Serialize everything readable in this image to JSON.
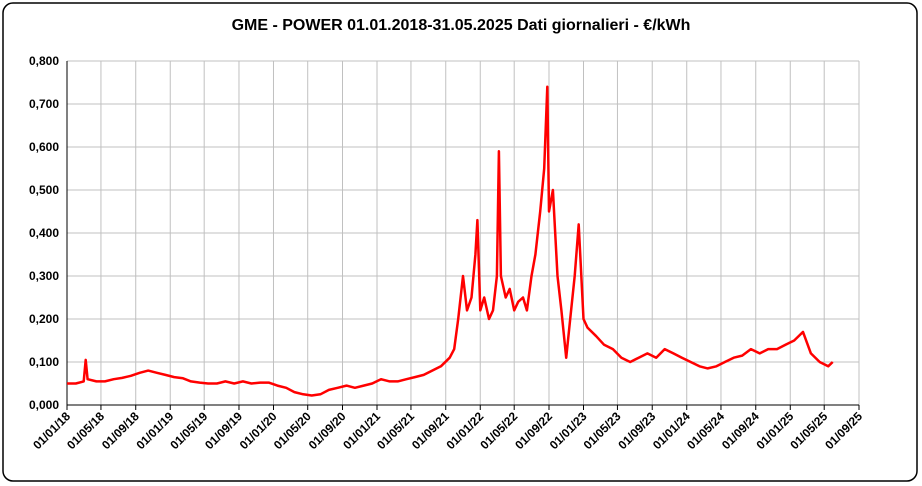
{
  "chart_data": {
    "type": "line",
    "title": "GME - POWER 01.01.2018-31.05.2025 Dati giornalieri - €/kWh",
    "x": [
      "2018-01-01",
      "2018-02-01",
      "2018-03-01",
      "2018-03-08",
      "2018-03-15",
      "2018-04-15",
      "2018-05-15",
      "2018-06-15",
      "2018-07-15",
      "2018-08-15",
      "2018-09-15",
      "2018-10-15",
      "2018-11-15",
      "2018-12-15",
      "2019-01-15",
      "2019-02-15",
      "2019-03-15",
      "2019-04-15",
      "2019-05-15",
      "2019-06-15",
      "2019-07-15",
      "2019-08-15",
      "2019-09-15",
      "2019-10-15",
      "2019-11-15",
      "2019-12-15",
      "2020-01-15",
      "2020-02-15",
      "2020-03-15",
      "2020-04-15",
      "2020-05-15",
      "2020-06-15",
      "2020-07-15",
      "2020-08-15",
      "2020-09-15",
      "2020-10-15",
      "2020-11-15",
      "2020-12-15",
      "2021-01-15",
      "2021-02-15",
      "2021-03-15",
      "2021-04-15",
      "2021-05-15",
      "2021-06-15",
      "2021-07-15",
      "2021-08-15",
      "2021-09-15",
      "2021-10-01",
      "2021-10-15",
      "2021-11-01",
      "2021-11-15",
      "2021-12-01",
      "2021-12-15",
      "2021-12-22",
      "2022-01-01",
      "2022-01-15",
      "2022-02-01",
      "2022-02-15",
      "2022-03-01",
      "2022-03-08",
      "2022-03-15",
      "2022-04-01",
      "2022-04-15",
      "2022-05-01",
      "2022-05-15",
      "2022-06-01",
      "2022-06-15",
      "2022-07-01",
      "2022-07-15",
      "2022-08-01",
      "2022-08-15",
      "2022-08-26",
      "2022-09-01",
      "2022-09-15",
      "2022-10-01",
      "2022-10-15",
      "2022-11-01",
      "2022-11-15",
      "2022-12-01",
      "2022-12-15",
      "2023-01-01",
      "2023-01-15",
      "2023-02-15",
      "2023-03-15",
      "2023-04-15",
      "2023-05-15",
      "2023-06-15",
      "2023-07-15",
      "2023-08-15",
      "2023-09-15",
      "2023-10-15",
      "2023-11-15",
      "2023-12-15",
      "2024-01-15",
      "2024-02-15",
      "2024-03-15",
      "2024-04-15",
      "2024-05-15",
      "2024-06-15",
      "2024-07-15",
      "2024-08-15",
      "2024-09-15",
      "2024-10-15",
      "2024-11-15",
      "2024-12-15",
      "2025-01-15",
      "2025-02-15",
      "2025-03-15",
      "2025-04-15",
      "2025-05-15",
      "2025-05-31"
    ],
    "values": [
      0.05,
      0.05,
      0.055,
      0.105,
      0.06,
      0.055,
      0.055,
      0.06,
      0.063,
      0.068,
      0.075,
      0.08,
      0.075,
      0.07,
      0.065,
      0.062,
      0.055,
      0.052,
      0.05,
      0.05,
      0.055,
      0.05,
      0.055,
      0.05,
      0.052,
      0.052,
      0.045,
      0.04,
      0.03,
      0.025,
      0.022,
      0.025,
      0.035,
      0.04,
      0.045,
      0.04,
      0.045,
      0.05,
      0.06,
      0.055,
      0.055,
      0.06,
      0.065,
      0.07,
      0.08,
      0.09,
      0.11,
      0.13,
      0.2,
      0.3,
      0.22,
      0.25,
      0.35,
      0.43,
      0.22,
      0.25,
      0.2,
      0.22,
      0.3,
      0.59,
      0.3,
      0.25,
      0.27,
      0.22,
      0.24,
      0.25,
      0.22,
      0.3,
      0.35,
      0.45,
      0.55,
      0.74,
      0.45,
      0.5,
      0.3,
      0.22,
      0.11,
      0.2,
      0.3,
      0.42,
      0.2,
      0.18,
      0.16,
      0.14,
      0.13,
      0.11,
      0.1,
      0.11,
      0.12,
      0.11,
      0.13,
      0.12,
      0.11,
      0.1,
      0.09,
      0.085,
      0.09,
      0.1,
      0.11,
      0.115,
      0.13,
      0.12,
      0.13,
      0.13,
      0.14,
      0.15,
      0.17,
      0.12,
      0.1,
      0.09,
      0.1
    ],
    "color": "#ff0000",
    "xlim": [
      "2018-01-01",
      "2025-09-01"
    ],
    "xticks": [
      {
        "value": "2018-01-01",
        "label": "01/01/18"
      },
      {
        "value": "2018-05-01",
        "label": "01/05/18"
      },
      {
        "value": "2018-09-01",
        "label": "01/09/18"
      },
      {
        "value": "2019-01-01",
        "label": "01/01/19"
      },
      {
        "value": "2019-05-01",
        "label": "01/05/19"
      },
      {
        "value": "2019-09-01",
        "label": "01/09/19"
      },
      {
        "value": "2020-01-01",
        "label": "01/01/20"
      },
      {
        "value": "2020-05-01",
        "label": "01/05/20"
      },
      {
        "value": "2020-09-01",
        "label": "01/09/20"
      },
      {
        "value": "2021-01-01",
        "label": "01/01/21"
      },
      {
        "value": "2021-05-01",
        "label": "01/05/21"
      },
      {
        "value": "2021-09-01",
        "label": "01/09/21"
      },
      {
        "value": "2022-01-01",
        "label": "01/01/22"
      },
      {
        "value": "2022-05-01",
        "label": "01/05/22"
      },
      {
        "value": "2022-09-01",
        "label": "01/09/22"
      },
      {
        "value": "2023-01-01",
        "label": "01/01/23"
      },
      {
        "value": "2023-05-01",
        "label": "01/05/23"
      },
      {
        "value": "2023-09-01",
        "label": "01/09/23"
      },
      {
        "value": "2024-01-01",
        "label": "01/01/24"
      },
      {
        "value": "2024-05-01",
        "label": "01/05/24"
      },
      {
        "value": "2024-09-01",
        "label": "01/09/24"
      },
      {
        "value": "2025-01-01",
        "label": "01/01/25"
      },
      {
        "value": "2025-05-01",
        "label": "01/05/25"
      },
      {
        "value": "2025-09-01",
        "label": "01/09/25"
      }
    ],
    "ylim": [
      0,
      0.8
    ],
    "yticks": [
      {
        "value": 0,
        "label": "0,000"
      },
      {
        "value": 0.1,
        "label": "0,100"
      },
      {
        "value": 0.2,
        "label": "0,200"
      },
      {
        "value": 0.3,
        "label": "0,300"
      },
      {
        "value": 0.4,
        "label": "0,400"
      },
      {
        "value": 0.5,
        "label": "0,500"
      },
      {
        "value": 0.6,
        "label": "0,600"
      },
      {
        "value": 0.7,
        "label": "0,700"
      },
      {
        "value": 0.8,
        "label": "0,800"
      }
    ],
    "grid": true
  }
}
